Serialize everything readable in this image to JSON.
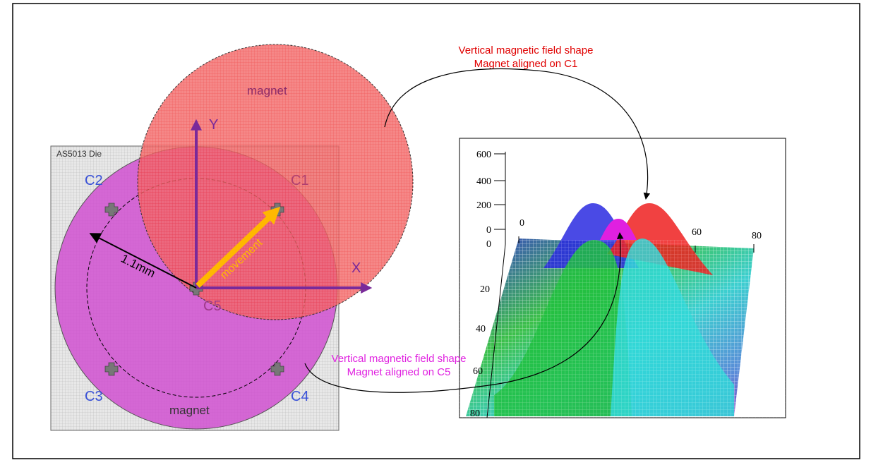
{
  "die": {
    "label": "AS5013 Die"
  },
  "sensors": {
    "c1": "C1",
    "c2": "C2",
    "c3": "C3",
    "c4": "C4",
    "c5": "C5"
  },
  "magnets": {
    "top": "magnet",
    "bottom": "magnet"
  },
  "axes": {
    "x": "X",
    "y": "Y"
  },
  "radius": "1.1mm",
  "movement": "movement",
  "annotation_c1": {
    "lines": [
      "Vertical magnetic field shape",
      "Magnet aligned on C1"
    ]
  },
  "annotation_c5": {
    "lines": [
      "Vertical magnetic field shape",
      "Magnet aligned on C5"
    ]
  },
  "plot": {
    "z_ticks": [
      "600",
      "400",
      "200",
      "0"
    ],
    "x_ticks": [
      "0",
      "60",
      "80"
    ],
    "y_ticks": [
      "0",
      "20",
      "40",
      "60",
      "80"
    ]
  }
}
